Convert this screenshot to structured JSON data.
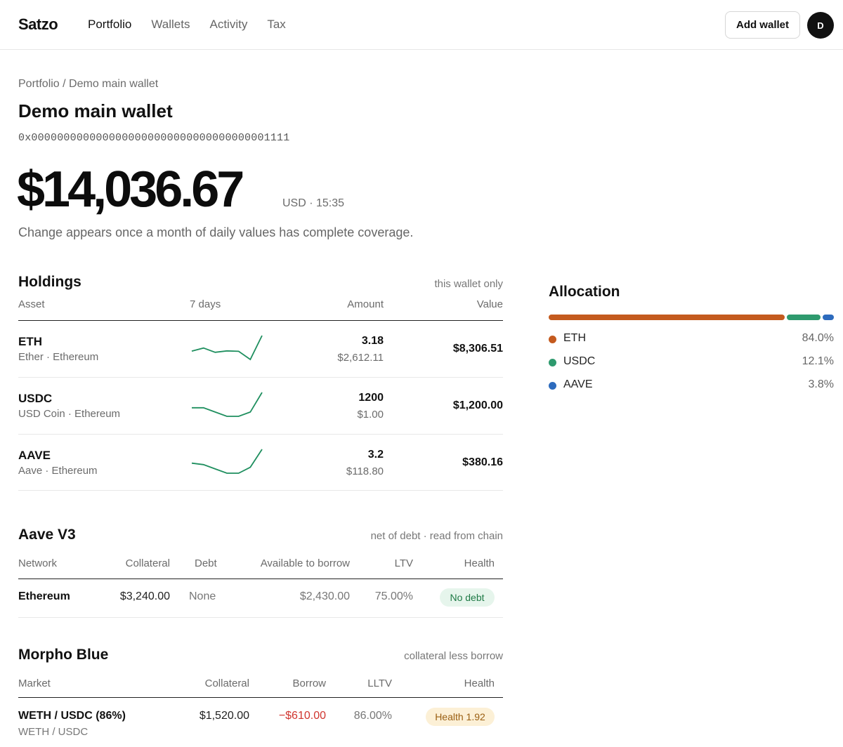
{
  "app": {
    "brand": "Satzo",
    "add_wallet_label": "Add wallet",
    "avatar_initial": "D"
  },
  "nav": [
    {
      "label": "Portfolio",
      "active": true
    },
    {
      "label": "Wallets",
      "active": false
    },
    {
      "label": "Activity",
      "active": false
    },
    {
      "label": "Tax",
      "active": false
    }
  ],
  "header": {
    "breadcrumb": "Portfolio / Demo main wallet",
    "title": "Demo main wallet",
    "address": "0x0000000000000000000000000000000000001111",
    "total_value": "$14,036.67",
    "total_meta": "USD · 15:35",
    "change_note": "Change appears once a month of daily values has complete coverage."
  },
  "holdings": {
    "title": "Holdings",
    "note": "this wallet only",
    "columns": {
      "asset": "Asset",
      "days": "7 days",
      "amount": "Amount",
      "value": "Value"
    },
    "rows": [
      {
        "symbol": "ETH",
        "subtitle": "Ether · Ethereum",
        "amount": "3.18",
        "price": "$2,612.11",
        "value": "$8,306.51",
        "spark": [
          0.35,
          0.48,
          0.3,
          0.36,
          0.34,
          0.0,
          1.0
        ]
      },
      {
        "symbol": "USDC",
        "subtitle": "USD Coin · Ethereum",
        "amount": "1200",
        "price": "$1.00",
        "value": "$1,200.00",
        "spark": [
          0.36,
          0.36,
          0.18,
          0.0,
          0.0,
          0.18,
          1.0
        ]
      },
      {
        "symbol": "AAVE",
        "subtitle": "Aave · Ethereum",
        "amount": "3.2",
        "price": "$118.80",
        "value": "$380.16",
        "spark": [
          0.42,
          0.36,
          0.18,
          0.0,
          0.0,
          0.25,
          1.0
        ]
      }
    ],
    "spark_color": "#1f8f5f"
  },
  "allocation": {
    "title": "Allocation",
    "items": [
      {
        "label": "ETH",
        "pct": "84.0%",
        "share": 0.84,
        "color": "#c45a1e"
      },
      {
        "label": "USDC",
        "pct": "12.1%",
        "share": 0.121,
        "color": "#2e9a6e"
      },
      {
        "label": "AAVE",
        "pct": "3.8%",
        "share": 0.038,
        "color": "#2d6bbd"
      }
    ]
  },
  "aave": {
    "title": "Aave V3",
    "note": "net of debt · read from chain",
    "columns": {
      "network": "Network",
      "collateral": "Collateral",
      "debt": "Debt",
      "available": "Available to borrow",
      "ltv": "LTV",
      "health": "Health"
    },
    "rows": [
      {
        "network": "Ethereum",
        "collateral": "$3,240.00",
        "debt": "None",
        "available": "$2,430.00",
        "ltv": "75.00%",
        "health": "No debt"
      }
    ]
  },
  "morpho": {
    "title": "Morpho Blue",
    "note": "collateral less borrow",
    "columns": {
      "market": "Market",
      "collateral": "Collateral",
      "borrow": "Borrow",
      "lltv": "LLTV",
      "health": "Health"
    },
    "rows": [
      {
        "market": "WETH / USDC (86%)",
        "market_sub": "WETH / USDC",
        "collateral": "$1,520.00",
        "borrow": "−$610.00",
        "lltv": "86.00%",
        "health": "Health 1.92"
      }
    ]
  }
}
